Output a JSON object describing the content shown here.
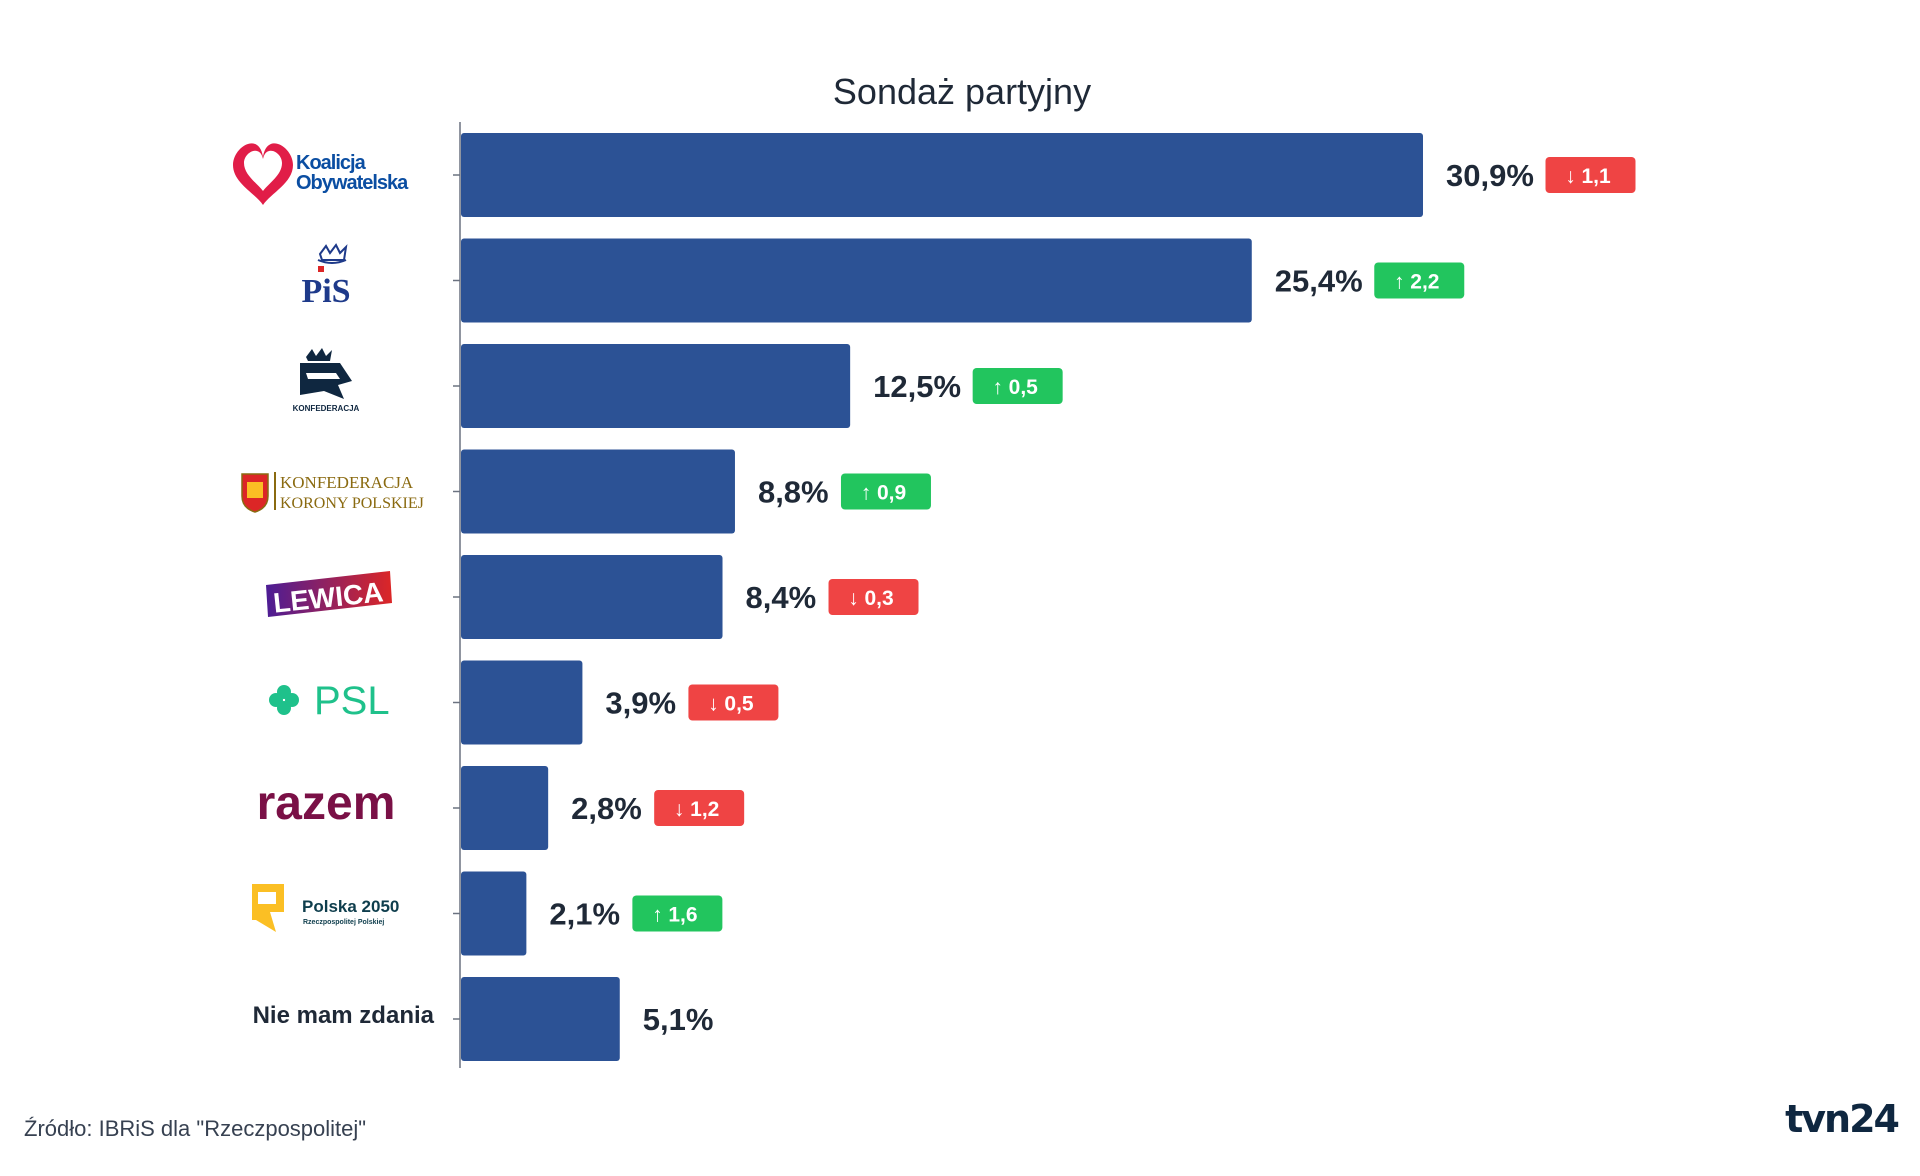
{
  "chart_data": {
    "type": "bar",
    "orientation": "horizontal",
    "title": "Sondaż partyjny",
    "categories": [
      "Koalicja Obywatelska",
      "PiS",
      "KONFEDERACJA",
      "KONFEDERACJA KORONY POLSKIEJ",
      "LEWICA",
      "PSL",
      "razem",
      "Polska 2050",
      "Nie mam zdania"
    ],
    "values": [
      30.9,
      25.4,
      12.5,
      8.8,
      8.4,
      3.9,
      2.8,
      2.1,
      5.1
    ],
    "value_labels": [
      "30,9%",
      "25,4%",
      "12,5%",
      "8,8%",
      "8,4%",
      "3,9%",
      "2,8%",
      "2,1%",
      "5,1%"
    ],
    "changes": [
      {
        "direction": "down",
        "label": "1,1"
      },
      {
        "direction": "up",
        "label": "2,2"
      },
      {
        "direction": "up",
        "label": "0,5"
      },
      {
        "direction": "up",
        "label": "0,9"
      },
      {
        "direction": "down",
        "label": "0,3"
      },
      {
        "direction": "down",
        "label": "0,5"
      },
      {
        "direction": "down",
        "label": "1,2"
      },
      {
        "direction": "up",
        "label": "1,6"
      },
      null
    ],
    "xlim": [
      0,
      30.9
    ],
    "grid": false,
    "legend": "none"
  },
  "logos": {
    "ko": {
      "line1": "Koalicja",
      "line2": "Obywatelska"
    },
    "pis": {
      "text": "PiS"
    },
    "konfederacja": {
      "text": "KONFEDERACJA"
    },
    "kkp": {
      "line1": "KONFEDERACJA",
      "line2": "KORONY POLSKIEJ"
    },
    "lewica": {
      "text": "LEWICA"
    },
    "psl": {
      "text": "PSL"
    },
    "razem": {
      "text": "razem"
    },
    "polska2050": {
      "line1": "Polska 2050",
      "line2": "Rzeczpospolitej Polskiej"
    },
    "text_label": "Nie mam zdania"
  },
  "source": "Źródło: IBRiS dla \"Rzeczpospolitej\"",
  "brand": "tvn24",
  "colors": {
    "bar": "#2c5295",
    "up": "#22c55e",
    "down": "#ef4444",
    "axis": "#6b7280",
    "text": "#1f2937",
    "ko_red": "#e11d48",
    "ko_blue": "#0b4ea2",
    "pis_blue": "#1e3a8a",
    "pis_red": "#dc2626",
    "konf_navy": "#0f2740",
    "kkp_gold": "#8a6a10",
    "lewica_red": "#dc2626",
    "lewica_purple": "#4c1d95",
    "psl_green": "#1fc18b",
    "razem_maroon": "#7a1046",
    "p2050_yellow": "#fbbf24",
    "p2050_teal": "#0f3e4d"
  }
}
